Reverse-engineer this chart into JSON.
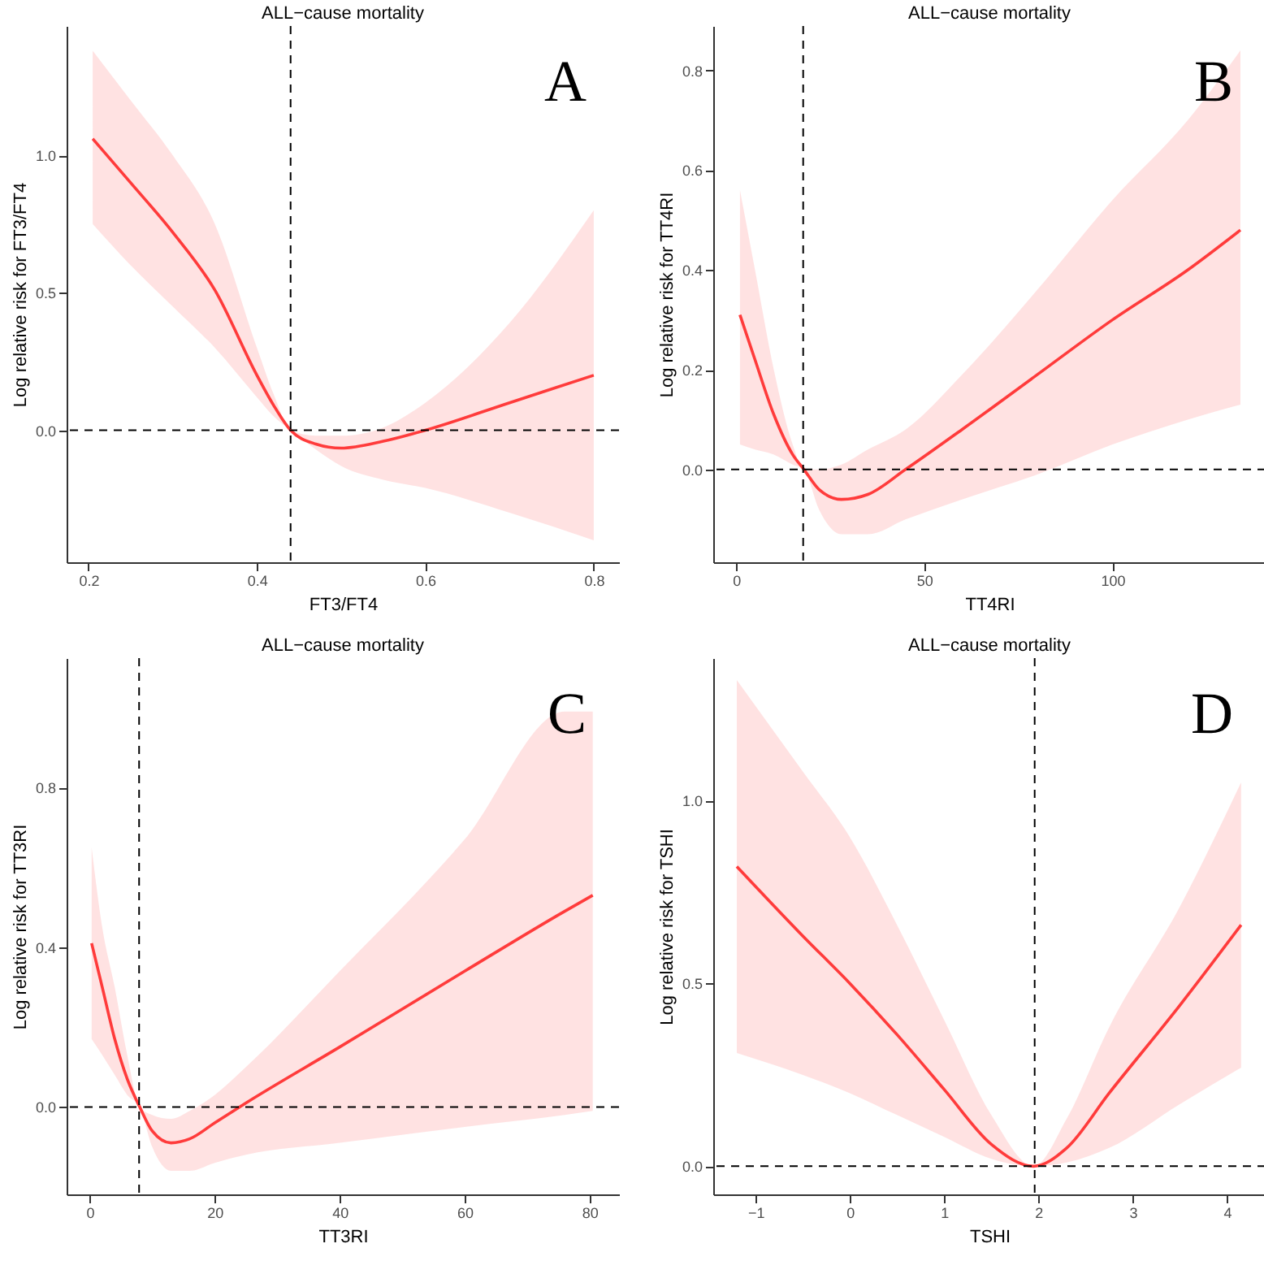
{
  "chart_data": [
    {
      "type": "line",
      "title": "ALL−cause mortality",
      "xlabel": "FT3/FT4",
      "ylabel": "Log relative risk for FT3/FT4",
      "annotations": [
        "A"
      ],
      "xlim": [
        0.174,
        0.83
      ],
      "xticks": [
        0.2,
        0.4,
        0.6,
        0.8
      ],
      "ylim": [
        -0.48,
        1.47
      ],
      "yticks": [
        {
          "value": 0,
          "label": "0.0"
        },
        {
          "value": 0.5,
          "label": "0.5"
        },
        {
          "value": 1,
          "label": "1.0"
        }
      ],
      "grid": false,
      "marker": "none",
      "line_style": "solid",
      "ref_lines": [
        {
          "axis": "x",
          "value": 0.44,
          "color": "#000000",
          "line_style": "dashed"
        },
        {
          "axis": "y",
          "value": 0,
          "color": "#000000",
          "line_style": "dashed"
        }
      ],
      "series": [
        {
          "color": "#ff3b3b",
          "x": [
            0.205,
            0.25,
            0.3,
            0.35,
            0.4,
            0.42,
            0.44,
            0.47,
            0.5,
            0.55,
            0.6,
            0.7,
            0.8
          ],
          "values": [
            1.06,
            0.9,
            0.72,
            0.51,
            0.2,
            0.09,
            0.0,
            -0.05,
            -0.065,
            -0.04,
            0.0,
            0.1,
            0.2
          ],
          "lower": [
            0.75,
            0.6,
            0.45,
            0.3,
            0.12,
            0.05,
            0.0,
            -0.07,
            -0.13,
            -0.18,
            -0.21,
            -0.3,
            -0.4
          ],
          "upper": [
            1.38,
            1.2,
            1.0,
            0.75,
            0.3,
            0.13,
            0.0,
            -0.02,
            -0.02,
            0.01,
            0.1,
            0.39,
            0.8
          ]
        }
      ]
    },
    {
      "type": "line",
      "title": "ALL−cause mortality",
      "xlabel": "TT4RI",
      "ylabel": "Log relative risk for TT4RI",
      "annotations": [
        "B"
      ],
      "xlim": [
        -6.1,
        140.7
      ],
      "xticks": [
        0,
        50,
        100
      ],
      "ylim": [
        -0.186,
        0.889
      ],
      "yticks": [
        {
          "value": 0,
          "label": "0.0"
        },
        {
          "value": 0.2,
          "label": "0.2"
        },
        {
          "value": 0.4,
          "label": "0.4"
        },
        {
          "value": 0.6,
          "label": "0.6"
        },
        {
          "value": 0.8,
          "label": "0.8"
        }
      ],
      "grid": false,
      "marker": "none",
      "line_style": "solid",
      "ref_lines": [
        {
          "axis": "x",
          "value": 17.8,
          "color": "#000000",
          "line_style": "dashed"
        },
        {
          "axis": "y",
          "value": 0,
          "color": "#000000",
          "line_style": "dashed"
        }
      ],
      "series": [
        {
          "color": "#ff3b3b",
          "x": [
            1,
            5,
            10,
            15,
            18,
            22,
            28,
            35,
            45,
            60,
            80,
            100,
            120,
            134
          ],
          "values": [
            0.31,
            0.22,
            0.11,
            0.03,
            0.0,
            -0.04,
            -0.06,
            -0.05,
            0.0,
            0.08,
            0.19,
            0.3,
            0.4,
            0.48
          ],
          "lower": [
            0.05,
            0.04,
            0.03,
            0.01,
            0.0,
            -0.08,
            -0.13,
            -0.13,
            -0.1,
            -0.06,
            -0.01,
            0.05,
            0.1,
            0.13
          ],
          "upper": [
            0.56,
            0.4,
            0.2,
            0.05,
            0.0,
            0.0,
            0.01,
            0.04,
            0.08,
            0.19,
            0.36,
            0.54,
            0.7,
            0.84
          ]
        }
      ]
    },
    {
      "type": "line",
      "title": "ALL−cause mortality",
      "xlabel": "TT3RI",
      "ylabel": "Log relative risk for TT3RI",
      "annotations": [
        "C"
      ],
      "xlim": [
        -3.7,
        84.7
      ],
      "xticks": [
        0,
        20,
        40,
        60,
        80
      ],
      "ylim": [
        -0.219,
        1.124
      ],
      "yticks": [
        {
          "value": 0,
          "label": "0.0"
        },
        {
          "value": 0.4,
          "label": "0.4"
        },
        {
          "value": 0.8,
          "label": "0.8"
        }
      ],
      "grid": false,
      "marker": "none",
      "line_style": "solid",
      "ref_lines": [
        {
          "axis": "x",
          "value": 7.9,
          "color": "#000000",
          "line_style": "dashed"
        },
        {
          "axis": "y",
          "value": 0,
          "color": "#000000",
          "line_style": "dashed"
        }
      ],
      "series": [
        {
          "color": "#ff3b3b",
          "x": [
            0.3,
            2,
            4,
            6,
            8,
            10,
            13,
            16,
            20,
            25,
            40,
            60,
            76,
            80.5
          ],
          "values": [
            0.41,
            0.3,
            0.17,
            0.07,
            0.0,
            -0.06,
            -0.09,
            -0.08,
            -0.04,
            0.01,
            0.15,
            0.34,
            0.49,
            0.53
          ],
          "lower": [
            0.17,
            0.13,
            0.08,
            0.03,
            0.0,
            -0.1,
            -0.16,
            -0.16,
            -0.14,
            -0.12,
            -0.09,
            -0.05,
            -0.02,
            -0.01
          ],
          "upper": [
            0.65,
            0.45,
            0.3,
            0.13,
            0.0,
            -0.02,
            -0.03,
            -0.01,
            0.03,
            0.1,
            0.34,
            0.67,
            0.99,
            0.99
          ]
        }
      ]
    },
    {
      "type": "line",
      "title": "ALL−cause mortality",
      "xlabel": "TSHI",
      "ylabel": "Log relative risk for TSHI",
      "annotations": [
        "D"
      ],
      "xlim": [
        -1.45,
        4.41
      ],
      "xticks": [
        {
          "value": -1,
          "label": "−1"
        },
        {
          "value": 0,
          "label": "0"
        },
        {
          "value": 1,
          "label": "1"
        },
        {
          "value": 2,
          "label": "2"
        },
        {
          "value": 3,
          "label": "3"
        },
        {
          "value": 4,
          "label": "4"
        }
      ],
      "ylim": [
        -0.077,
        1.39
      ],
      "yticks": [
        {
          "value": 0,
          "label": "0.0"
        },
        {
          "value": 0.5,
          "label": "0.5"
        },
        {
          "value": 1,
          "label": "1.0"
        }
      ],
      "grid": false,
      "marker": "none",
      "line_style": "solid",
      "ref_lines": [
        {
          "axis": "x",
          "value": 1.96,
          "color": "#000000",
          "line_style": "dashed"
        },
        {
          "axis": "y",
          "value": 0,
          "color": "#000000",
          "line_style": "dashed"
        }
      ],
      "series": [
        {
          "color": "#ff3b3b",
          "x": [
            -1.2,
            -0.5,
            0,
            0.5,
            1,
            1.5,
            1.95,
            2.3,
            2.75,
            3.5,
            4.15
          ],
          "values": [
            0.82,
            0.63,
            0.5,
            0.36,
            0.21,
            0.06,
            0.0,
            0.05,
            0.2,
            0.44,
            0.66
          ],
          "lower": [
            0.31,
            0.25,
            0.2,
            0.14,
            0.08,
            0.02,
            0.0,
            0.01,
            0.05,
            0.17,
            0.27
          ],
          "upper": [
            1.33,
            1.08,
            0.9,
            0.66,
            0.4,
            0.14,
            0.0,
            0.13,
            0.38,
            0.71,
            1.05
          ]
        }
      ]
    }
  ]
}
